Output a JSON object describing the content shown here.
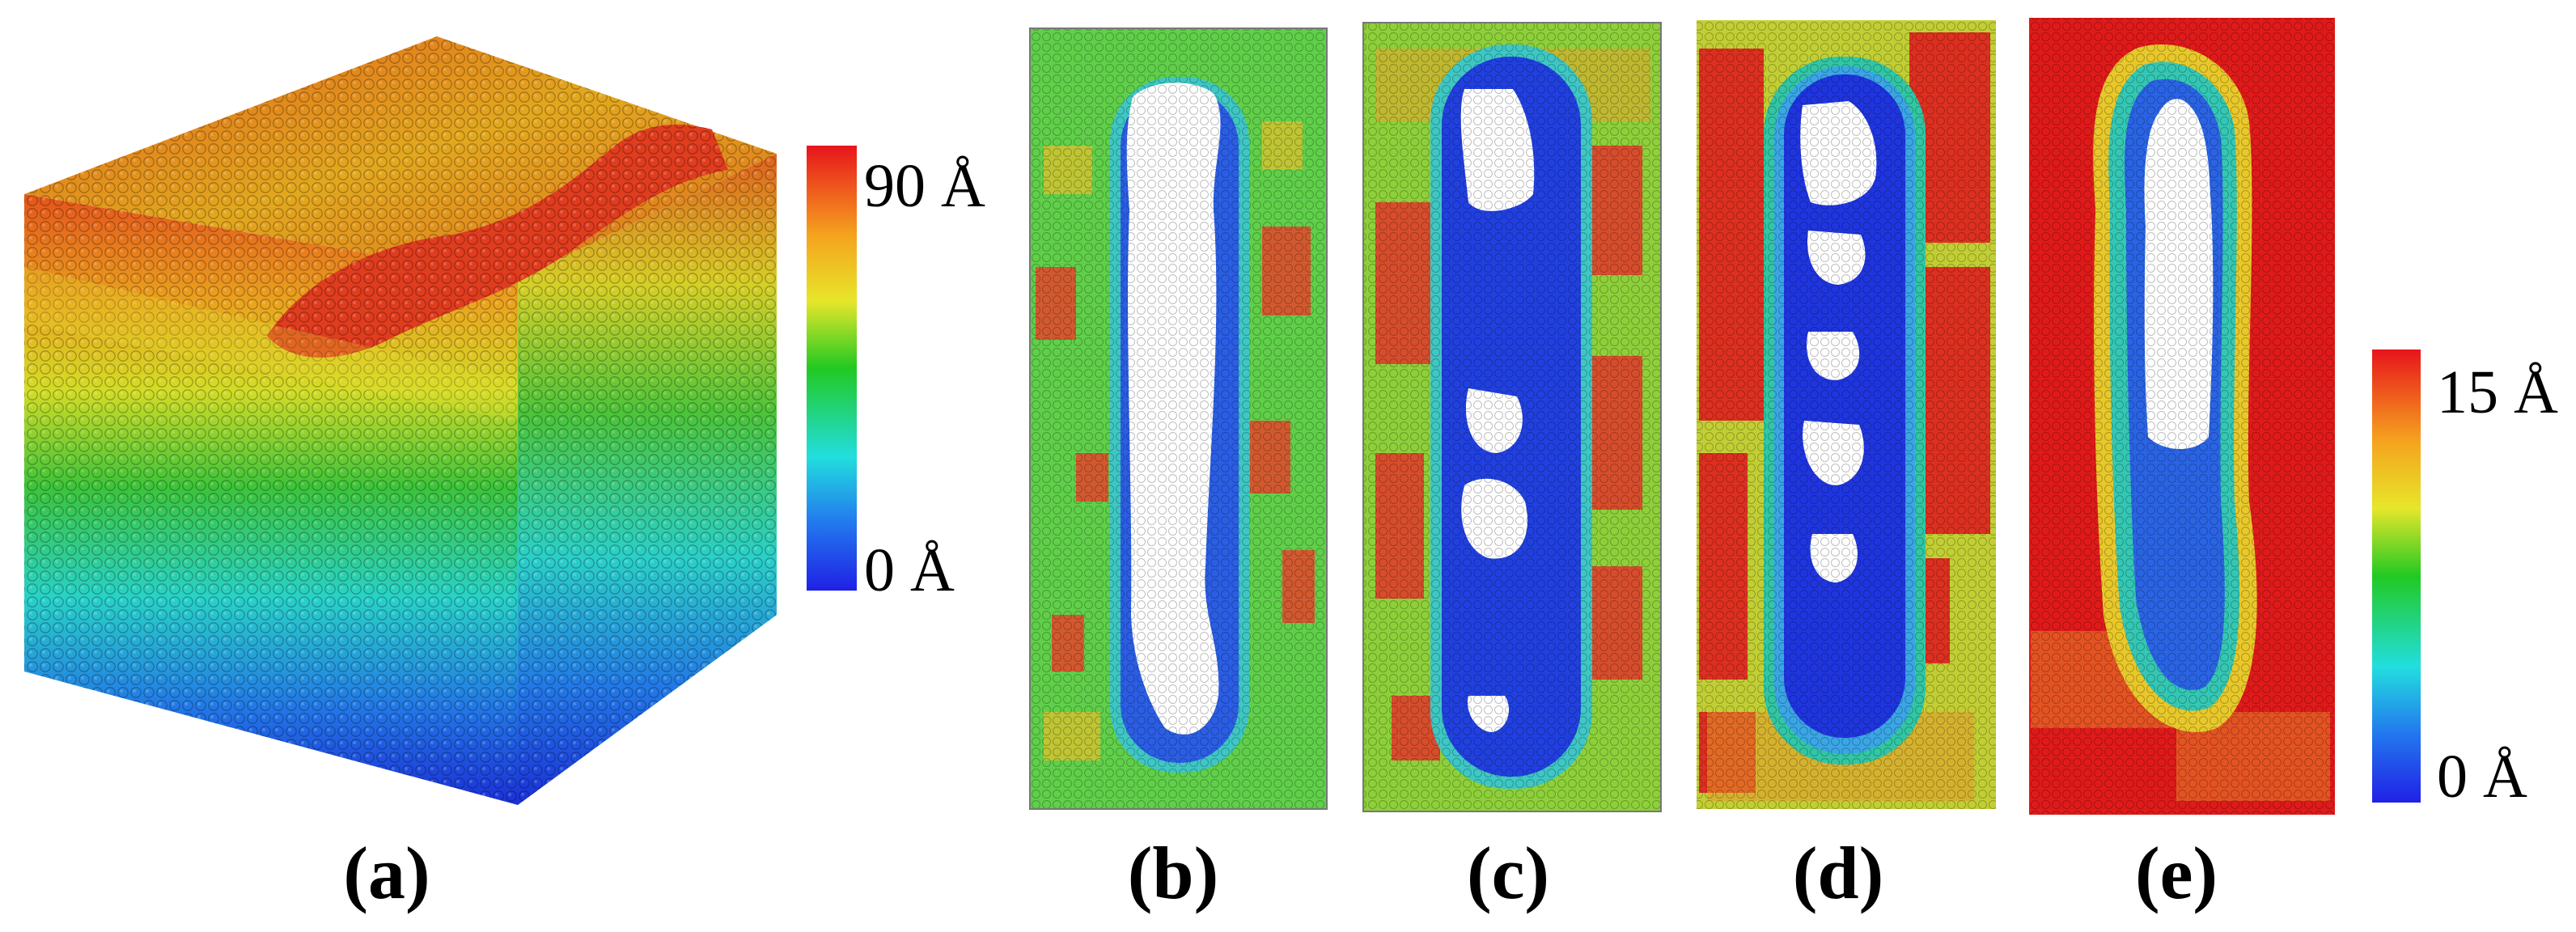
{
  "figure": {
    "panels": [
      {
        "id": "a",
        "label": "(a)"
      },
      {
        "id": "b",
        "label": "(b)"
      },
      {
        "id": "c",
        "label": "(c)"
      },
      {
        "id": "d",
        "label": "(d)"
      },
      {
        "id": "e",
        "label": "(e)"
      }
    ],
    "colorbar_height": {
      "max_label": "90 Å",
      "min_label": "0 Å"
    },
    "colorbar_displacement": {
      "max_label": "15 Å",
      "min_label": "0 Å"
    },
    "colors": {
      "red": "#e31a1c",
      "orange": "#f07a1e",
      "yellow": "#d8dc2a",
      "green": "#2fc12f",
      "cyan": "#22d3d3",
      "blue": "#1b35d9",
      "deep_blue": "#2020e0"
    }
  }
}
